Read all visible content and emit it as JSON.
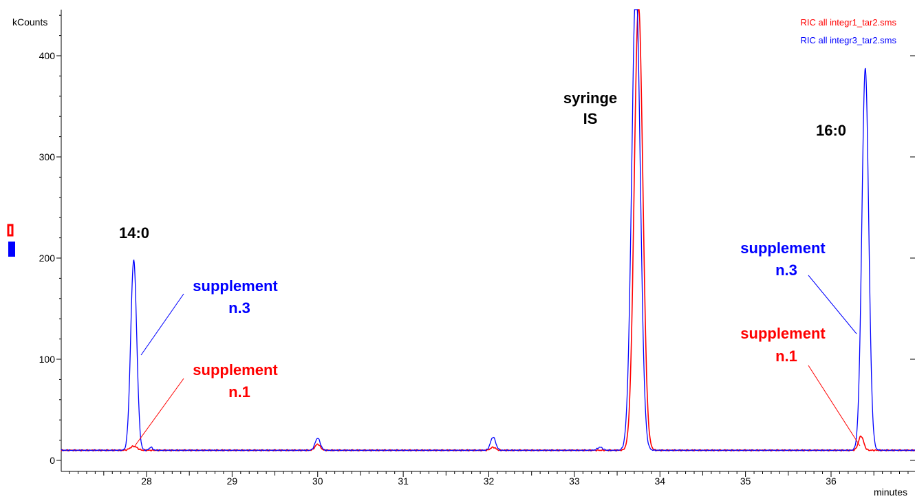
{
  "chart_data": {
    "type": "line",
    "title": "",
    "xlabel": "minutes",
    "ylabel": "kCounts",
    "xlim": [
      27.0,
      37.0
    ],
    "ylim": [
      -15,
      455
    ],
    "x_ticks": [
      28,
      29,
      30,
      31,
      32,
      33,
      34,
      35,
      36
    ],
    "y_ticks": [
      0,
      100,
      200,
      300,
      400
    ],
    "grid": false,
    "legend_position": "top-right",
    "baseline": 10,
    "series": [
      {
        "name": "RIC all integr1_tar2.sms",
        "color": "#ff0000",
        "peaks": [
          {
            "x": 27.85,
            "height": 4,
            "width": 0.04
          },
          {
            "x": 30.0,
            "height": 6,
            "width": 0.03
          },
          {
            "x": 32.05,
            "height": 3,
            "width": 0.03
          },
          {
            "x": 33.75,
            "height": 440,
            "width": 0.05
          },
          {
            "x": 36.35,
            "height": 14,
            "width": 0.03
          }
        ]
      },
      {
        "name": "RIC all integr3_tar2.sms",
        "color": "#0000ff",
        "peaks": [
          {
            "x": 27.85,
            "height": 188,
            "width": 0.035
          },
          {
            "x": 28.05,
            "height": 3,
            "width": 0.02
          },
          {
            "x": 30.0,
            "height": 12,
            "width": 0.03
          },
          {
            "x": 32.05,
            "height": 13,
            "width": 0.03
          },
          {
            "x": 33.3,
            "height": 3,
            "width": 0.03
          },
          {
            "x": 33.72,
            "height": 460,
            "width": 0.05
          },
          {
            "x": 36.4,
            "height": 378,
            "width": 0.04
          }
        ]
      }
    ],
    "annotations": [
      {
        "text": "14:0",
        "color": "#000000"
      },
      {
        "text": "supplement",
        "color": "#0000ff"
      },
      {
        "text": "n.3",
        "color": "#0000ff"
      },
      {
        "text": "supplement",
        "color": "#ff0000"
      },
      {
        "text": "n.1",
        "color": "#ff0000"
      },
      {
        "text": "syringe",
        "color": "#000000"
      },
      {
        "text": "IS",
        "color": "#000000"
      },
      {
        "text": "16:0",
        "color": "#000000"
      },
      {
        "text": "supplement",
        "color": "#0000ff"
      },
      {
        "text": "n.3",
        "color": "#0000ff"
      },
      {
        "text": "supplement",
        "color": "#ff0000"
      },
      {
        "text": "n.1",
        "color": "#ff0000"
      }
    ]
  }
}
